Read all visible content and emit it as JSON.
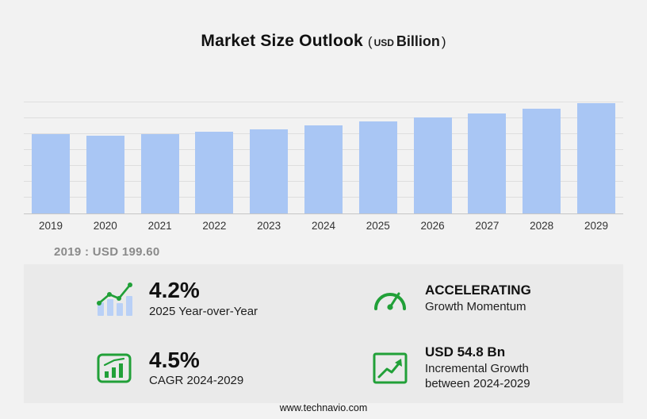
{
  "title": {
    "main": "Market Size Outlook",
    "open": "(",
    "currency": "USD",
    "unit": "Billion",
    "close": ")"
  },
  "chart_data": {
    "type": "bar",
    "title": "Market Size Outlook (USD Billion)",
    "categories": [
      "2019",
      "2020",
      "2021",
      "2022",
      "2023",
      "2024",
      "2025",
      "2026",
      "2027",
      "2028",
      "2029"
    ],
    "values": [
      199.6,
      196.0,
      200.5,
      206.0,
      212.4,
      222.6,
      232.0,
      242.0,
      252.4,
      264.4,
      277.4
    ],
    "ylabel": "",
    "xlabel": "",
    "unit": "USD Billion",
    "ylim": [
      0,
      328
    ],
    "grid": true,
    "bar_color": "#a9c6f4"
  },
  "annotation": {
    "text": "2019 : USD  199.60"
  },
  "stats": [
    {
      "icon": "growth-line-bars-icon",
      "value": "4.2%",
      "label": "2025 Year-over-Year"
    },
    {
      "icon": "speedometer-icon",
      "value": "ACCELERATING",
      "label": "Growth Momentum"
    },
    {
      "icon": "cagr-bar-chart-icon",
      "value": "4.5%",
      "label": "CAGR 2024-2029"
    },
    {
      "icon": "incremental-growth-icon",
      "value": "USD 54.8 Bn",
      "label": "Incremental Growth between 2024-2029"
    }
  ],
  "footer": {
    "url": "www.technavio.com"
  },
  "colors": {
    "accent_green": "#21a038",
    "bar_blue": "#a9c6f4",
    "icon_bar_blue": "#b9d0f6",
    "panel_bg": "#eaeaea",
    "page_bg": "#f2f2f2"
  }
}
